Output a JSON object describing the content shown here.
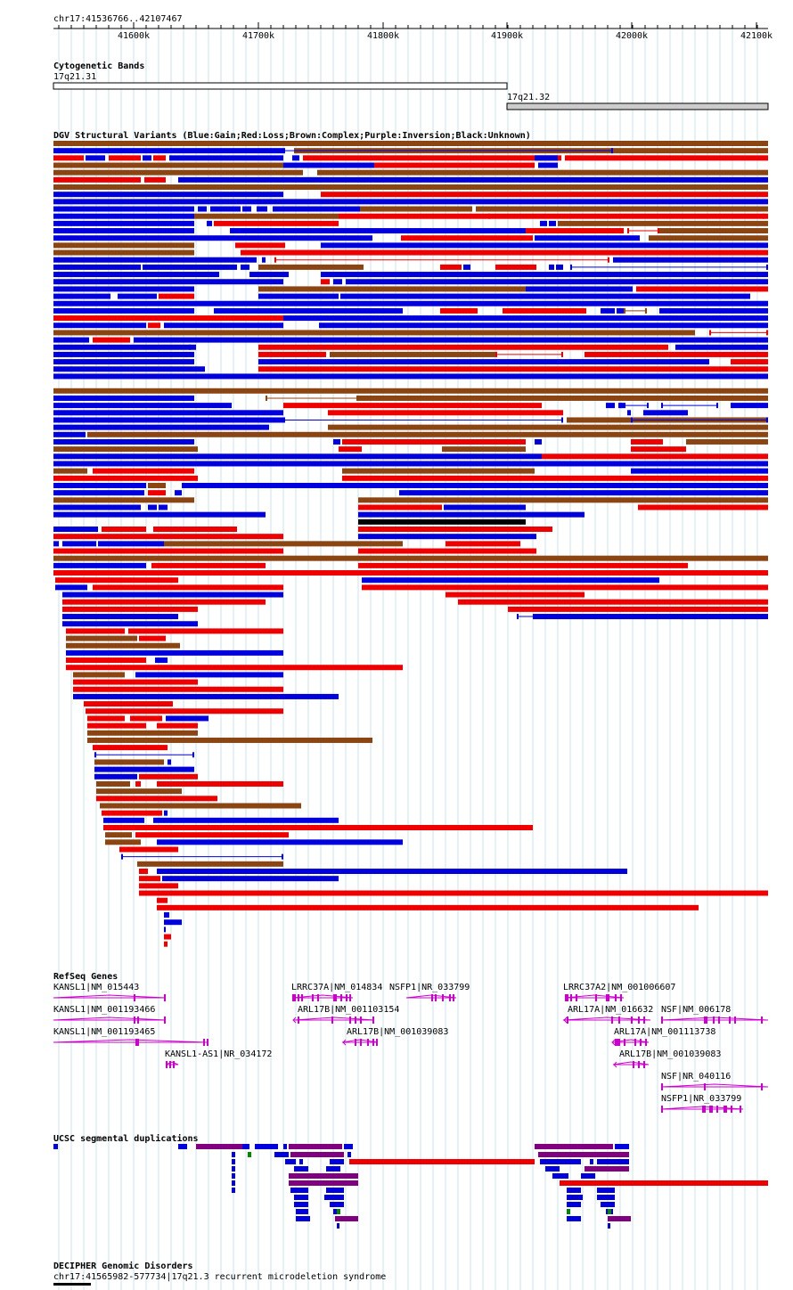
{
  "browser": {
    "position": "chr17:41536766..42107467",
    "ruler_ticks": [
      "41600k",
      "41700k",
      "41800k",
      "41900k",
      "42000k",
      "42100k"
    ]
  },
  "tracks": {
    "cytobands": {
      "title": "Cytogenetic Bands",
      "bands": [
        {
          "label": "17q21.31",
          "start": 41536766,
          "end": 41900000,
          "fill": "#ffffff"
        },
        {
          "label": "17q21.32",
          "start": 41900000,
          "end": 42107467,
          "fill": "#cccccc"
        }
      ]
    },
    "dgv": {
      "title": "DGV Structural Variants (Blue:Gain;Red:Loss;Brown:Complex;Purple:Inversion;Black:Unknown)",
      "colors": {
        "gain": "#0000dd",
        "loss": "#ee0000",
        "complex": "#8b4513",
        "inversion": "#800080",
        "unknown": "#000000"
      }
    },
    "refseq": {
      "title": "RefSeq Genes",
      "color": "#cc00cc",
      "genes": [
        {
          "label": "KANSL1|NM_015443"
        },
        {
          "label": "KANSL1|NM_001193466"
        },
        {
          "label": "KANSL1|NM_001193465"
        },
        {
          "label": "KANSL1-AS1|NR_034172"
        },
        {
          "label": "LRRC37A|NM_014834"
        },
        {
          "label": "NSFP1|NR_033799"
        },
        {
          "label": "ARL17B|NM_001103154"
        },
        {
          "label": "ARL17B|NM_001039083"
        },
        {
          "label": "LRRC37A2|NM_001006607"
        },
        {
          "label": "ARL17A|NM_016632"
        },
        {
          "label": "NSF|NM_006178"
        },
        {
          "label": "ARL17A|NM_001113738"
        },
        {
          "label": "ARL17B|NM_001039083"
        },
        {
          "label": "NSF|NR_040116"
        },
        {
          "label": "NSFP1|NR_033799"
        }
      ]
    },
    "segdups": {
      "title": "UCSC segmental duplications"
    },
    "decipher": {
      "title": "DECIPHER Genomic Disorders",
      "item": "chr17:41565982-577734|17q21.3 recurrent microdeletion syndrome"
    }
  }
}
